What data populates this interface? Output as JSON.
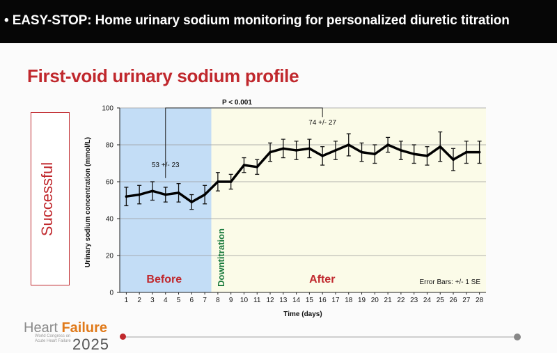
{
  "header": {
    "title": "• EASY-STOP: Home urinary sodium monitoring for personalized diuretic titration"
  },
  "slide": {
    "title": "First-void urinary sodium profile",
    "outcome_label": "Successful"
  },
  "footer": {
    "logo_word1": "Heart ",
    "logo_word2": "Failure",
    "logo_year": "2025",
    "logo_small": "World Congress on Acute Heart Failure"
  },
  "chart_data": {
    "type": "line",
    "xlabel": "Time (days)",
    "ylabel": "Urinary sodium concentration (mmol/L)",
    "xlim": [
      0.5,
      28.5
    ],
    "ylim": [
      0,
      100
    ],
    "yticks": [
      0,
      20,
      40,
      60,
      80,
      100
    ],
    "x": [
      1,
      2,
      3,
      4,
      5,
      6,
      7,
      8,
      9,
      10,
      11,
      12,
      13,
      14,
      15,
      16,
      17,
      18,
      19,
      20,
      21,
      22,
      23,
      24,
      25,
      26,
      27,
      28
    ],
    "series": [
      {
        "values": [
          52,
          53,
          55,
          53,
          54,
          49,
          53,
          60,
          60,
          69,
          68,
          76,
          78,
          77,
          78,
          74,
          77,
          80,
          76,
          75,
          80,
          77,
          75,
          74,
          79,
          72,
          76,
          76
        ],
        "error": [
          5,
          5,
          5,
          4,
          5,
          4,
          5,
          5,
          4,
          4,
          4,
          5,
          5,
          5,
          5,
          5,
          5,
          6,
          5,
          5,
          4,
          5,
          5,
          5,
          8,
          6,
          6,
          6
        ],
        "color": "#000000"
      }
    ],
    "regions": [
      {
        "label": "Before",
        "from": 0.5,
        "to": 7.5,
        "color": "#c3ddf6",
        "label_color": "#c0282d"
      },
      {
        "label": "After",
        "from": 7.5,
        "to": 28.5,
        "color": "#fbfbe8",
        "label_color": "#c0282d"
      }
    ],
    "divider_label": "Downtitration",
    "divider_color": "#1a7a3c",
    "annotations": [
      {
        "text": "53 +/- 23",
        "x": 4,
        "y": 68
      },
      {
        "text": "74 +/- 27",
        "x": 16,
        "y": 91
      }
    ],
    "bracket": {
      "x1": 4,
      "x2": 16,
      "y": 100,
      "label": "P < 0.001"
    },
    "error_note": "Error Bars: +/- 1 SE"
  }
}
